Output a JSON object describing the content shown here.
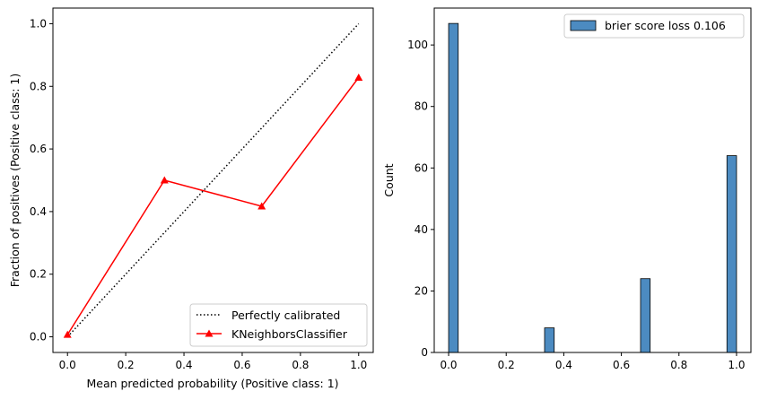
{
  "chart_data": [
    {
      "type": "line",
      "title": "",
      "xlabel": "Mean predicted probability (Positive class: 1)",
      "ylabel": "Fraction of positives (Positive class: 1)",
      "xlim": [
        -0.05,
        1.05
      ],
      "ylim": [
        -0.05,
        1.05
      ],
      "xticks": [
        "0.0",
        "0.2",
        "0.4",
        "0.6",
        "0.8",
        "1.0"
      ],
      "yticks": [
        "0.0",
        "0.2",
        "0.4",
        "0.6",
        "0.8",
        "1.0"
      ],
      "grid": false,
      "legend_position": "bottom-right",
      "series": [
        {
          "name": "Perfectly calibrated",
          "color": "#000000",
          "style": "dotted",
          "x": [
            0,
            1
          ],
          "y": [
            0,
            1
          ]
        },
        {
          "name": "KNeighborsClassifier",
          "color": "#ff0000",
          "style": "solid",
          "marker": "triangle",
          "x": [
            0.0,
            0.333,
            0.667,
            1.0
          ],
          "y": [
            0.007,
            0.5,
            0.417,
            0.828
          ]
        }
      ]
    },
    {
      "type": "bar",
      "title": "",
      "xlabel": "",
      "ylabel": "Count",
      "xlim": [
        -0.05,
        1.05
      ],
      "ylim": [
        0,
        112
      ],
      "xticks": [
        "0.0",
        "0.2",
        "0.4",
        "0.6",
        "0.8",
        "1.0"
      ],
      "yticks": [
        "0",
        "20",
        "40",
        "60",
        "80",
        "100"
      ],
      "grid": false,
      "legend_position": "top-right",
      "series": [
        {
          "name": "brier score loss 0.106",
          "color": "#4c8bc1",
          "bins": [
            {
              "x0": 0.0,
              "x1": 0.0333,
              "count": 107
            },
            {
              "x0": 0.3333,
              "x1": 0.3667,
              "count": 8
            },
            {
              "x0": 0.6667,
              "x1": 0.7,
              "count": 24
            },
            {
              "x0": 0.9667,
              "x1": 1.0,
              "count": 64
            }
          ]
        }
      ]
    }
  ]
}
